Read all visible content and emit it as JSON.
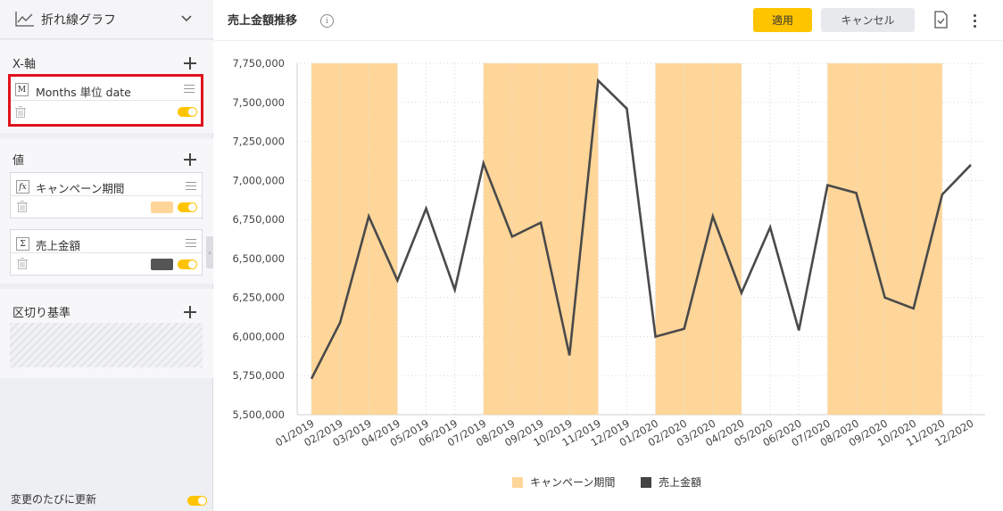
{
  "visualization": {
    "type_label": "折れ線グラフ"
  },
  "fields": {
    "x_axis": {
      "title": "X-軸",
      "item": {
        "badge": "M",
        "label": "Months 単位 date"
      }
    },
    "values": {
      "title": "値",
      "items": [
        {
          "badge": "fx",
          "label": "キャンペーン期間",
          "color": "#ffd699"
        },
        {
          "badge": "Σ",
          "label": "売上金額",
          "color": "#555555"
        }
      ]
    },
    "breakout": {
      "title": "区切り基準"
    },
    "auto_update_label": "変更のたびに更新"
  },
  "header": {
    "title": "売上金額推移",
    "info": "i",
    "apply_label": "適用",
    "cancel_label": "キャンセル"
  },
  "colors": {
    "accent": "#ffc400",
    "campaign": "#ffd699",
    "sales_line": "#555555",
    "highlight_border": "#e0121e"
  },
  "chart_data": {
    "type": "line",
    "title": "売上金額推移",
    "x": [
      "01/2019",
      "02/2019",
      "03/2019",
      "04/2019",
      "05/2019",
      "06/2019",
      "07/2019",
      "08/2019",
      "09/2019",
      "10/2019",
      "11/2019",
      "12/2019",
      "01/2020",
      "02/2020",
      "03/2020",
      "04/2020",
      "05/2020",
      "06/2020",
      "07/2020",
      "08/2020",
      "09/2020",
      "10/2020",
      "11/2020",
      "12/2020"
    ],
    "series": [
      {
        "name": "売上金額",
        "render": "line",
        "color": "#555555",
        "values": [
          5730000,
          6090000,
          6770000,
          6360000,
          6820000,
          6300000,
          7110000,
          6640000,
          6730000,
          5880000,
          7640000,
          7460000,
          6000000,
          6050000,
          6770000,
          6280000,
          6700000,
          6040000,
          6970000,
          6920000,
          6250000,
          6180000,
          6910000,
          7100000
        ]
      },
      {
        "name": "キャンペーン期間",
        "render": "band",
        "color": "#ffd699",
        "values": [
          1,
          1,
          1,
          0,
          0,
          0,
          1,
          1,
          1,
          1,
          0,
          0,
          1,
          1,
          1,
          0,
          0,
          0,
          1,
          1,
          1,
          1,
          0,
          0
        ]
      }
    ],
    "ylim": [
      5500000,
      7750000
    ],
    "yticks": [
      "5,500,000",
      "5,750,000",
      "6,000,000",
      "6,250,000",
      "6,500,000",
      "6,750,000",
      "7,000,000",
      "7,250,000",
      "7,500,000",
      "7,750,000"
    ],
    "grid": true,
    "legend_position": "bottom-center"
  }
}
